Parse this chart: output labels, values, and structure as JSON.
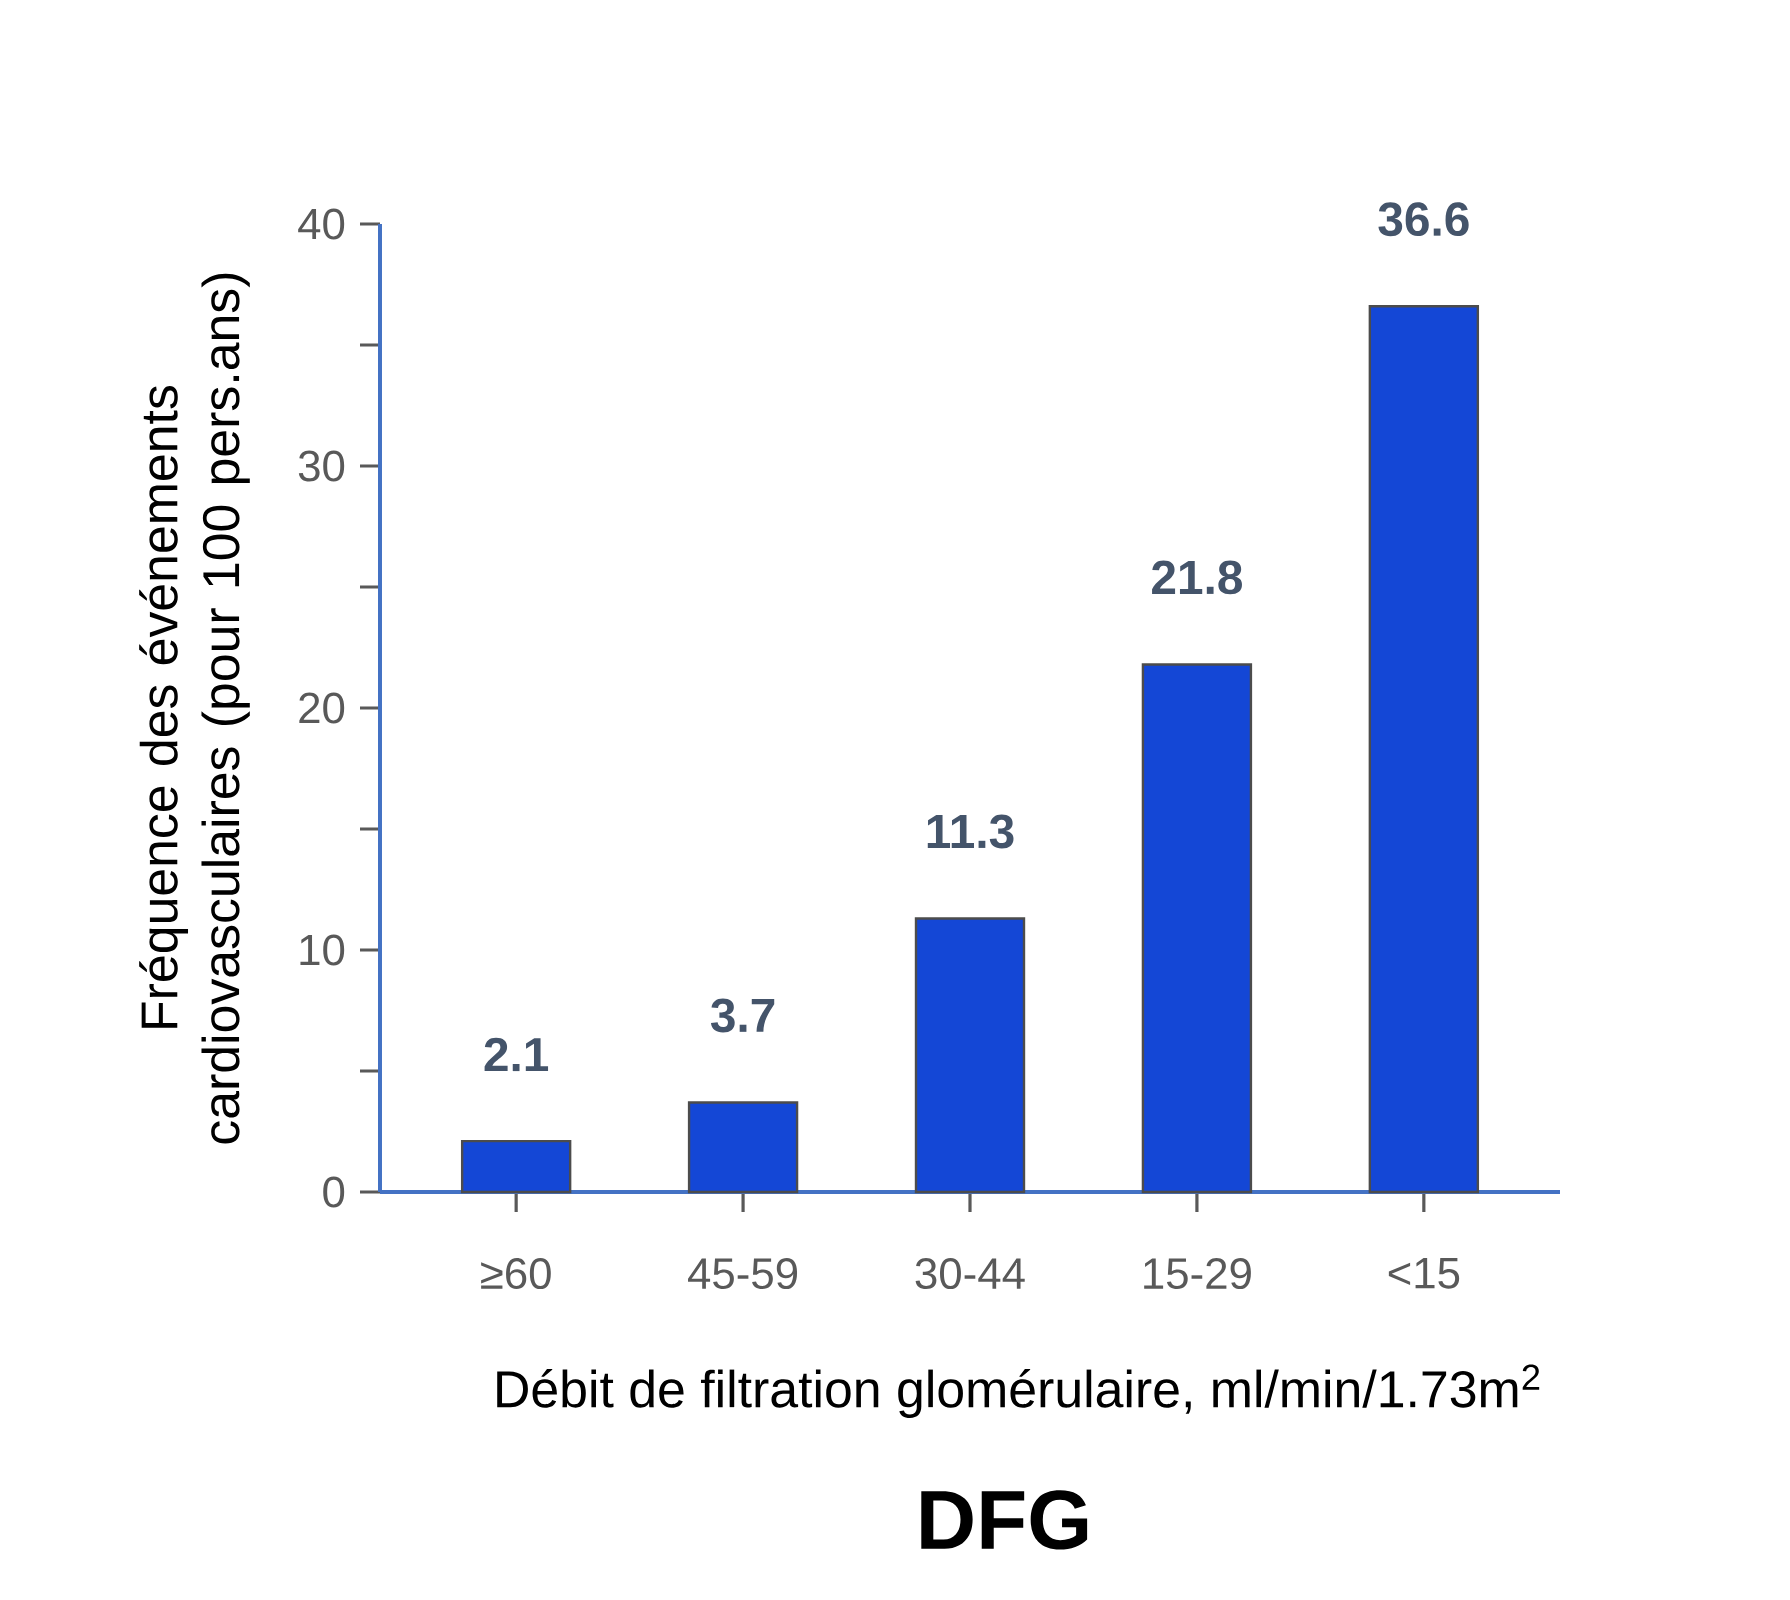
{
  "chart_data": {
    "type": "bar",
    "title": "DFG",
    "xlabel": "Débit de filtration glomérulaire, ml/min/1.73m$^{2}$",
    "ylabel": "Fréquence des événements cardiovasculaires (pour 100 pers.ans)",
    "categories": [
      "≥60",
      "45-59",
      "30-44",
      "15-29",
      "<15"
    ],
    "values": [
      2.1,
      3.7,
      11.3,
      21.8,
      36.6
    ],
    "color": "#1447d6",
    "data_labels": true,
    "ylim": [
      0,
      40
    ],
    "yticks": [
      0,
      10,
      20,
      30,
      40
    ],
    "grid": false
  }
}
